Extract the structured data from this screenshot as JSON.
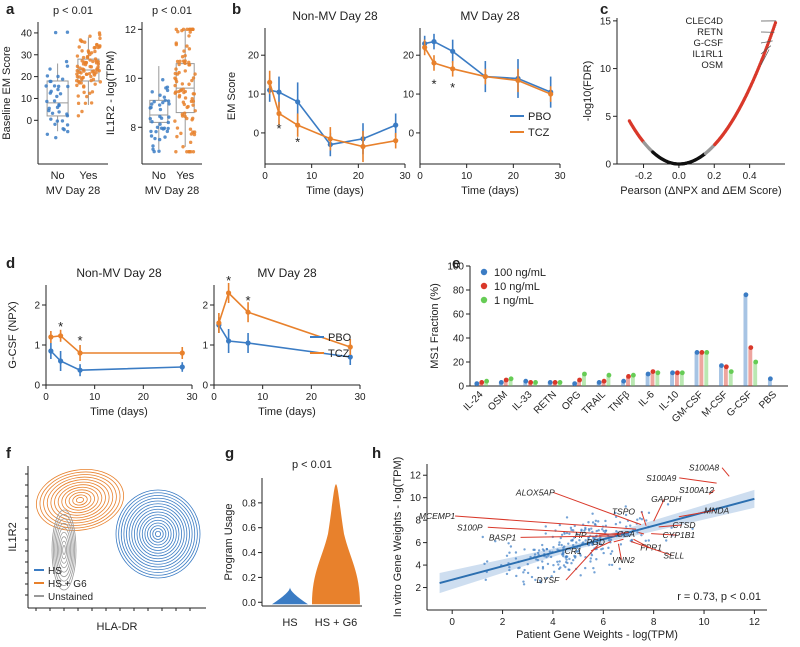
{
  "colors": {
    "blue": "#3b7cc4",
    "orange": "#e8812c",
    "red": "#d9382a",
    "green": "#66cc55",
    "gray": "#999999"
  },
  "panel_letters": [
    "a",
    "b",
    "c",
    "d",
    "e",
    "f",
    "g",
    "h"
  ],
  "chart_data": [
    {
      "id": "a1",
      "type": "boxplot-strip",
      "xlabel": "MV Day 28",
      "ylabel": "Baseline EM Score",
      "categories": [
        "No",
        "Yes"
      ],
      "stat": "p < 0.01",
      "ylim": [
        -20,
        45
      ],
      "yticks": [
        0,
        10,
        20,
        30,
        40
      ],
      "boxes": [
        {
          "name": "No",
          "q1": 2,
          "median": 8,
          "q3": 18,
          "lo": -5,
          "hi": 26,
          "n": 40,
          "color": "blue"
        },
        {
          "name": "Yes",
          "q1": 18,
          "median": 23,
          "q3": 28,
          "lo": 7,
          "hi": 38,
          "n": 90,
          "color": "orange"
        }
      ]
    },
    {
      "id": "a2",
      "type": "boxplot-strip",
      "xlabel": "MV Day 28",
      "ylabel": "IL1R2 - log(TPM)",
      "categories": [
        "No",
        "Yes"
      ],
      "stat": "p < 0.01",
      "ylim": [
        6.5,
        12.3
      ],
      "yticks": [
        8,
        10,
        12
      ],
      "boxes": [
        {
          "name": "No",
          "q1": 8.2,
          "median": 8.5,
          "q3": 9.1,
          "lo": 7.1,
          "hi": 10.5,
          "n": 40,
          "color": "blue"
        },
        {
          "name": "Yes",
          "q1": 8.6,
          "median": 9.6,
          "q3": 10.6,
          "lo": 7.2,
          "hi": 12.0,
          "n": 90,
          "color": "orange"
        }
      ]
    },
    {
      "id": "b1",
      "type": "line",
      "title": "Non-MV Day 28",
      "xlabel": "Time (days)",
      "ylabel": "EM Score",
      "x": [
        1,
        3,
        7,
        14,
        21,
        28
      ],
      "xlim": [
        0,
        30
      ],
      "xticks": [
        0,
        10,
        20,
        30
      ],
      "ylim": [
        -8,
        27
      ],
      "yticks": [
        0,
        10,
        20
      ],
      "series": [
        {
          "name": "PBO",
          "color": "blue",
          "values": [
            11,
            10.5,
            8,
            -3,
            -1.5,
            2
          ],
          "err": [
            3,
            4,
            5,
            3,
            4,
            3
          ]
        },
        {
          "name": "TCZ",
          "color": "orange",
          "values": [
            13,
            5,
            2,
            -1.5,
            -3.5,
            -2
          ],
          "err": [
            3,
            3,
            3,
            3,
            4,
            2
          ]
        }
      ],
      "stars": [
        {
          "x": 3,
          "y": 1
        },
        {
          "x": 7,
          "y": -2.5
        }
      ]
    },
    {
      "id": "b2",
      "type": "line",
      "title": "MV Day 28",
      "xlabel": "Time (days)",
      "ylabel": "",
      "x": [
        1,
        3,
        7,
        14,
        21,
        28
      ],
      "xlim": [
        0,
        30
      ],
      "xticks": [
        0,
        10,
        20,
        30
      ],
      "ylim": [
        -8,
        27
      ],
      "yticks": [
        0,
        10,
        20
      ],
      "series": [
        {
          "name": "PBO",
          "color": "blue",
          "values": [
            23,
            23.5,
            21,
            14.5,
            14,
            10.5
          ],
          "err": [
            2,
            2,
            3,
            4,
            5,
            4
          ]
        },
        {
          "name": "TCZ",
          "color": "orange",
          "values": [
            22,
            18,
            16.5,
            14.5,
            13.5,
            10
          ],
          "err": [
            2,
            2,
            2,
            2,
            3,
            2
          ]
        }
      ],
      "stars": [
        {
          "x": 3,
          "y": 12.5
        },
        {
          "x": 7,
          "y": 11.5
        }
      ],
      "legend": [
        "PBO",
        "TCZ"
      ]
    },
    {
      "id": "c",
      "type": "scatter",
      "xlabel": "Pearson (ΔNPX and ΔEM Score)",
      "ylabel": "-log10(FDR)",
      "xlim": [
        -0.35,
        0.6
      ],
      "xticks": [
        -0.2,
        0.0,
        0.2,
        0.4
      ],
      "ylim": [
        0,
        15.3
      ],
      "yticks": [
        0,
        5,
        10,
        15
      ],
      "labels": [
        {
          "text": "CLEC4D",
          "x": 0.55,
          "y": 15
        },
        {
          "text": "RETN",
          "x": 0.54,
          "y": 13.8
        },
        {
          "text": "G-CSF",
          "x": 0.53,
          "y": 12.9
        },
        {
          "text": "IL1RL1",
          "x": 0.52,
          "y": 12.4
        },
        {
          "text": "OSM",
          "x": 0.51,
          "y": 12.0
        }
      ]
    },
    {
      "id": "d1",
      "type": "line",
      "title": "Non-MV Day 28",
      "xlabel": "Time (days)",
      "ylabel": "G-CSF (NPX)",
      "x": [
        1,
        3,
        7,
        28
      ],
      "xlim": [
        0,
        30
      ],
      "xticks": [
        0,
        10,
        20,
        30
      ],
      "ylim": [
        0,
        2.5
      ],
      "yticks": [
        0,
        1,
        2
      ],
      "series": [
        {
          "name": "PBO",
          "color": "blue",
          "values": [
            0.85,
            0.6,
            0.37,
            0.45
          ],
          "err": [
            0.2,
            0.25,
            0.15,
            0.12
          ]
        },
        {
          "name": "TCZ",
          "color": "orange",
          "values": [
            1.2,
            1.23,
            0.8,
            0.8
          ],
          "err": [
            0.15,
            0.15,
            0.2,
            0.15
          ]
        }
      ],
      "stars": [
        {
          "x": 3,
          "y": 1.45
        },
        {
          "x": 7,
          "y": 1.1
        }
      ]
    },
    {
      "id": "d2",
      "type": "line",
      "title": "MV Day 28",
      "xlabel": "Time (days)",
      "ylabel": "",
      "x": [
        1,
        3,
        7,
        28
      ],
      "xlim": [
        0,
        30
      ],
      "xticks": [
        0,
        10,
        20,
        30
      ],
      "ylim": [
        0,
        2.5
      ],
      "yticks": [
        0,
        1,
        2
      ],
      "series": [
        {
          "name": "PBO",
          "color": "blue",
          "values": [
            1.5,
            1.1,
            1.05,
            0.7
          ],
          "err": [
            0.2,
            0.3,
            0.25,
            0.2
          ]
        },
        {
          "name": "TCZ",
          "color": "orange",
          "values": [
            1.55,
            2.3,
            1.82,
            0.95
          ],
          "err": [
            0.25,
            0.25,
            0.25,
            0.2
          ]
        }
      ],
      "stars": [
        {
          "x": 3,
          "y": 2.6
        },
        {
          "x": 7,
          "y": 2.1
        }
      ],
      "legend": [
        "PBO",
        "TCZ"
      ]
    },
    {
      "id": "e",
      "type": "bar",
      "ylabel": "MS1 Fraction (%)",
      "ylim": [
        0,
        100
      ],
      "yticks": [
        0,
        20,
        40,
        60,
        80,
        100
      ],
      "categories": [
        "IL-24",
        "OSM",
        "IL-33",
        "RETN",
        "OPG",
        "TRAIL",
        "TNFβ",
        "IL-6",
        "IL-10",
        "GM-CSF",
        "M-CSF",
        "G-CSF",
        "PBS"
      ],
      "series": [
        {
          "name": "100 ng/mL",
          "color": "blue",
          "values": [
            2,
            3,
            4,
            3,
            2,
            3,
            4,
            10,
            11,
            28,
            17,
            76,
            6
          ]
        },
        {
          "name": "10 ng/mL",
          "color": "red",
          "values": [
            3,
            5,
            3,
            3,
            5,
            4,
            8,
            12,
            11,
            28,
            16,
            32,
            0
          ]
        },
        {
          "name": "1 ng/mL",
          "color": "green",
          "values": [
            4,
            6,
            3,
            3,
            10,
            9,
            9,
            11,
            11,
            28,
            12,
            20,
            0
          ]
        }
      ]
    },
    {
      "id": "f",
      "type": "contour",
      "xlabel": "HLA-DR",
      "ylabel": "IL1R2",
      "legend": [
        "HS",
        "HS + G6",
        "Unstained"
      ]
    },
    {
      "id": "g",
      "type": "violin",
      "ylabel": "Program Usage",
      "categories": [
        "HS",
        "HS + G6"
      ],
      "stat": "p < 0.01",
      "ylim": [
        -0.03,
        1.0
      ],
      "yticks": [
        0.0,
        0.2,
        0.4,
        0.6,
        0.8
      ]
    },
    {
      "id": "h",
      "type": "scatter-regression",
      "xlabel": "Patient Gene Weights - log(TPM)",
      "ylabel": "In vitro Gene Weights - log(TPM)",
      "xlim": [
        -1,
        12.5
      ],
      "xticks": [
        0,
        2,
        4,
        6,
        8,
        10,
        12
      ],
      "ylim": [
        0,
        13
      ],
      "yticks": [
        2,
        4,
        6,
        8,
        10,
        12
      ],
      "stat": "r = 0.73, p < 0.01",
      "fit": {
        "slope": 0.6,
        "intercept": 2.7
      },
      "genes": [
        {
          "text": "S100A8",
          "tx": 10.0,
          "ty": 12.4,
          "px": 11.0,
          "py": 11.9
        },
        {
          "text": "S100A9",
          "tx": 8.3,
          "ty": 11.5,
          "px": 10.5,
          "py": 11.3
        },
        {
          "text": "S100A12",
          "tx": 9.7,
          "ty": 10.4,
          "px": 10.2,
          "py": 10.3
        },
        {
          "text": "ALOX5AP",
          "tx": 3.3,
          "ty": 10.2,
          "px": 7.5,
          "py": 7.6
        },
        {
          "text": "GAPDH",
          "tx": 8.5,
          "ty": 9.6,
          "px": 8.0,
          "py": 7.9
        },
        {
          "text": "MNDA",
          "tx": 10.5,
          "ty": 8.6,
          "px": 9.0,
          "py": 8.3
        },
        {
          "text": "TSPO",
          "tx": 6.8,
          "ty": 8.5,
          "px": 7.7,
          "py": 7.5
        },
        {
          "text": "MCEMP1",
          "tx": -0.6,
          "ty": 8.1,
          "px": 7.3,
          "py": 7.2
        },
        {
          "text": "CTSD",
          "tx": 9.2,
          "ty": 7.3,
          "px": 8.2,
          "py": 7.4
        },
        {
          "text": "S100P",
          "tx": 0.7,
          "ty": 7.1,
          "px": 6.7,
          "py": 6.7
        },
        {
          "text": "HP",
          "tx": 5.1,
          "ty": 6.4,
          "px": 7.0,
          "py": 6.9
        },
        {
          "text": "CCA",
          "tx": 6.9,
          "ty": 6.5,
          "px": 7.4,
          "py": 6.9
        },
        {
          "text": "CYP1B1",
          "tx": 9.0,
          "ty": 6.4,
          "px": 7.9,
          "py": 6.8
        },
        {
          "text": "BASP1",
          "tx": 2.0,
          "ty": 6.2,
          "px": 6.5,
          "py": 6.6
        },
        {
          "text": "PGD",
          "tx": 5.7,
          "ty": 5.8,
          "px": 6.8,
          "py": 6.3
        },
        {
          "text": "FPR1",
          "tx": 7.9,
          "ty": 5.3,
          "px": 7.2,
          "py": 6.3
        },
        {
          "text": "CR1",
          "tx": 4.8,
          "ty": 5.0,
          "px": 6.3,
          "py": 6.1
        },
        {
          "text": "SELL",
          "tx": 8.8,
          "ty": 4.6,
          "px": 7.1,
          "py": 6.1
        },
        {
          "text": "VNN2",
          "tx": 6.8,
          "ty": 4.2,
          "px": 6.6,
          "py": 5.9
        },
        {
          "text": "DYSF",
          "tx": 3.8,
          "ty": 2.4,
          "px": 5.8,
          "py": 5.8
        }
      ]
    }
  ]
}
